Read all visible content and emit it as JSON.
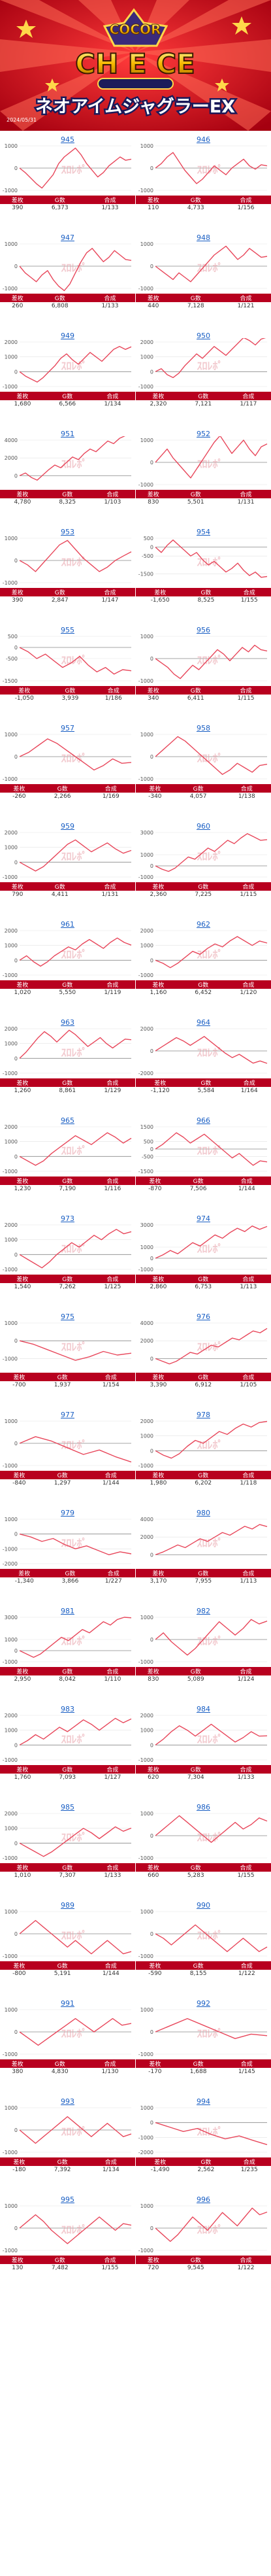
{
  "header": {
    "logo_text": "COCOR",
    "logo_sub": "CH E CE",
    "title": "ネオアイムジャグラーEX",
    "small_caption": "2024/05/31"
  },
  "labels": {
    "diff": "差枚",
    "games": "G数",
    "combined": "合成"
  },
  "watermark": "ｽﾛﾚﾎﾟ",
  "colors": {
    "accent": "#b8001f",
    "line": "#e8475b",
    "link": "#1a5fc4"
  },
  "machines": [
    {
      "num": "945",
      "diff": "390",
      "games": "6,373",
      "combined": "1/133",
      "ymax": 1000,
      "ymin": -1000,
      "pts": [
        0,
        -200,
        -450,
        -700,
        -900,
        -600,
        -300,
        200,
        500,
        700,
        900,
        600,
        200,
        -100,
        -400,
        -200,
        100,
        300,
        500,
        350,
        400
      ]
    },
    {
      "num": "946",
      "diff": "110",
      "games": "4,733",
      "combined": "1/156",
      "ymax": 1000,
      "ymin": -1000,
      "pts": [
        0,
        200,
        500,
        700,
        300,
        -100,
        -400,
        -700,
        -500,
        -200,
        100,
        -100,
        -300,
        0,
        200,
        400,
        100,
        -50,
        150,
        100
      ]
    },
    {
      "num": "947",
      "diff": "260",
      "games": "6,808",
      "combined": "1/133",
      "ymax": 1000,
      "ymin": -1000,
      "pts": [
        0,
        -300,
        -500,
        -700,
        -400,
        -200,
        -600,
        -900,
        -1100,
        -800,
        -300,
        200,
        600,
        800,
        500,
        200,
        400,
        700,
        500,
        300,
        260
      ]
    },
    {
      "num": "948",
      "diff": "440",
      "games": "7,128",
      "combined": "1/121",
      "ymax": 1000,
      "ymin": -1000,
      "pts": [
        0,
        -200,
        -400,
        -600,
        -300,
        -500,
        -700,
        -400,
        -100,
        200,
        500,
        700,
        900,
        600,
        300,
        500,
        800,
        600,
        400,
        440
      ]
    },
    {
      "num": "949",
      "diff": "1,680",
      "games": "6,566",
      "combined": "1/134",
      "ymax": 2000,
      "ymin": -1000,
      "pts": [
        0,
        -300,
        -500,
        -700,
        -400,
        0,
        400,
        900,
        1200,
        800,
        500,
        900,
        1300,
        1000,
        700,
        1100,
        1500,
        1700,
        1500,
        1680
      ]
    },
    {
      "num": "950",
      "diff": "2,320",
      "games": "7,121",
      "combined": "1/117",
      "ymax": 2000,
      "ymin": -1000,
      "pts": [
        0,
        200,
        -200,
        -400,
        -100,
        400,
        800,
        1200,
        900,
        1300,
        1700,
        1400,
        1100,
        1500,
        1900,
        2300,
        2100,
        1800,
        2200,
        2320
      ]
    },
    {
      "num": "951",
      "diff": "4,780",
      "games": "8,325",
      "combined": "1/103",
      "ymax": 4000,
      "ymin": -1000,
      "pts": [
        0,
        300,
        -200,
        -500,
        100,
        700,
        1200,
        900,
        1500,
        2100,
        1800,
        2500,
        3000,
        2700,
        3300,
        3900,
        3600,
        4200,
        4500,
        4780
      ]
    },
    {
      "num": "952",
      "diff": "830",
      "games": "5,501",
      "combined": "1/131",
      "ymax": 1000,
      "ymin": -1000,
      "pts": [
        0,
        300,
        600,
        200,
        -100,
        -400,
        -700,
        -300,
        100,
        500,
        900,
        1200,
        800,
        400,
        700,
        1000,
        600,
        300,
        700,
        830
      ]
    },
    {
      "num": "953",
      "diff": "390",
      "games": "2,847",
      "combined": "1/147",
      "ymax": 1000,
      "ymin": -1000,
      "pts": [
        0,
        -200,
        -500,
        -100,
        300,
        700,
        900,
        500,
        100,
        -200,
        -500,
        -300,
        0,
        200,
        390
      ]
    },
    {
      "num": "954",
      "diff": "-1,650",
      "games": "8,525",
      "combined": "1/155",
      "ymax": 500,
      "ymin": -2000,
      "pts": [
        0,
        -300,
        100,
        400,
        100,
        -200,
        -500,
        -300,
        -700,
        -1000,
        -800,
        -1100,
        -1400,
        -1200,
        -900,
        -1300,
        -1600,
        -1400,
        -1700,
        -1650
      ]
    },
    {
      "num": "955",
      "diff": "-1,050",
      "games": "3,939",
      "combined": "1/186",
      "ymax": 500,
      "ymin": -1500,
      "pts": [
        0,
        -200,
        -500,
        -300,
        -600,
        -900,
        -700,
        -400,
        -800,
        -1100,
        -900,
        -1200,
        -1000,
        -1050
      ]
    },
    {
      "num": "956",
      "diff": "340",
      "games": "6,411",
      "combined": "1/115",
      "ymax": 1000,
      "ymin": -1000,
      "pts": [
        0,
        -200,
        -400,
        -700,
        -900,
        -600,
        -300,
        -500,
        -200,
        100,
        400,
        200,
        -100,
        200,
        500,
        300,
        600,
        400,
        340
      ]
    },
    {
      "num": "957",
      "diff": "-260",
      "games": "2,266",
      "combined": "1/169",
      "ymax": 1000,
      "ymin": -1000,
      "pts": [
        0,
        200,
        500,
        800,
        600,
        300,
        0,
        -300,
        -600,
        -400,
        -100,
        -300,
        -260
      ]
    },
    {
      "num": "958",
      "diff": "-340",
      "games": "4,057",
      "combined": "1/138",
      "ymax": 1000,
      "ymin": -1000,
      "pts": [
        0,
        300,
        600,
        900,
        700,
        400,
        100,
        -200,
        -500,
        -800,
        -600,
        -300,
        -500,
        -700,
        -400,
        -340
      ]
    },
    {
      "num": "959",
      "diff": "790",
      "games": "4,411",
      "combined": "1/131",
      "ymax": 2000,
      "ymin": -1000,
      "pts": [
        0,
        -300,
        -600,
        -300,
        200,
        700,
        1200,
        1500,
        1100,
        700,
        1000,
        1300,
        900,
        600,
        790
      ]
    },
    {
      "num": "960",
      "diff": "2,360",
      "games": "7,225",
      "combined": "1/115",
      "ymax": 3000,
      "ymin": -1000,
      "pts": [
        0,
        -300,
        -500,
        -200,
        300,
        800,
        600,
        1100,
        1600,
        1300,
        1800,
        2300,
        2000,
        2500,
        2900,
        2600,
        2300,
        2360
      ]
    },
    {
      "num": "961",
      "diff": "1,020",
      "games": "5,550",
      "combined": "1/119",
      "ymax": 2000,
      "ymin": -1000,
      "pts": [
        0,
        300,
        -100,
        -400,
        -100,
        300,
        600,
        900,
        700,
        1100,
        1400,
        1100,
        800,
        1200,
        1500,
        1200,
        1020
      ]
    },
    {
      "num": "962",
      "diff": "1,160",
      "games": "6,452",
      "combined": "1/120",
      "ymax": 2000,
      "ymin": -1000,
      "pts": [
        0,
        -200,
        -500,
        -200,
        200,
        600,
        400,
        800,
        1100,
        900,
        1300,
        1600,
        1300,
        1000,
        1300,
        1160
      ]
    },
    {
      "num": "963",
      "diff": "1,260",
      "games": "8,861",
      "combined": "1/129",
      "ymax": 2000,
      "ymin": -1000,
      "pts": [
        0,
        400,
        900,
        1400,
        1800,
        1500,
        1100,
        1500,
        1900,
        1600,
        1200,
        800,
        1100,
        1400,
        1000,
        700,
        1000,
        1300,
        1260
      ]
    },
    {
      "num": "964",
      "diff": "-1,120",
      "games": "5,584",
      "combined": "1/164",
      "ymax": 2000,
      "ymin": -2000,
      "pts": [
        0,
        400,
        800,
        1200,
        900,
        500,
        900,
        1300,
        800,
        300,
        -200,
        -600,
        -300,
        -700,
        -1100,
        -900,
        -1120
      ]
    },
    {
      "num": "965",
      "diff": "1,230",
      "games": "7,190",
      "combined": "1/116",
      "ymax": 2000,
      "ymin": -1000,
      "pts": [
        0,
        -300,
        -600,
        -300,
        200,
        600,
        1000,
        1400,
        1100,
        800,
        1200,
        1600,
        1300,
        900,
        1230
      ]
    },
    {
      "num": "966",
      "diff": "-870",
      "games": "7,506",
      "combined": "1/144",
      "ymax": 1500,
      "ymin": -1500,
      "pts": [
        0,
        300,
        700,
        1100,
        800,
        400,
        700,
        1000,
        600,
        200,
        -200,
        -600,
        -300,
        -700,
        -1100,
        -800,
        -870
      ]
    },
    {
      "num": "973",
      "diff": "1,540",
      "games": "7,262",
      "combined": "1/125",
      "ymax": 2000,
      "ymin": -1000,
      "pts": [
        0,
        -300,
        -600,
        -900,
        -500,
        0,
        400,
        800,
        500,
        900,
        1300,
        1000,
        1400,
        1700,
        1400,
        1540
      ]
    },
    {
      "num": "974",
      "diff": "2,860",
      "games": "6,753",
      "combined": "1/113",
      "ymax": 3000,
      "ymin": -1000,
      "pts": [
        0,
        300,
        700,
        400,
        900,
        1400,
        1100,
        1600,
        2100,
        1800,
        2300,
        2700,
        2400,
        2900,
        2600,
        2860
      ]
    },
    {
      "num": "975",
      "diff": "-700",
      "games": "1,937",
      "combined": "1/154",
      "ymax": 1000,
      "ymin": -1500,
      "pts": [
        0,
        -200,
        -500,
        -800,
        -1100,
        -900,
        -600,
        -800,
        -700
      ]
    },
    {
      "num": "976",
      "diff": "3,390",
      "games": "6,912",
      "combined": "1/105",
      "ymax": 4000,
      "ymin": -1000,
      "pts": [
        0,
        -300,
        -600,
        -300,
        200,
        700,
        500,
        1000,
        1500,
        1300,
        1800,
        2300,
        2100,
        2600,
        3100,
        2900,
        3390
      ]
    },
    {
      "num": "977",
      "diff": "-840",
      "games": "1,297",
      "combined": "1/144",
      "ymax": 1000,
      "ymin": -1000,
      "pts": [
        0,
        300,
        100,
        -200,
        -500,
        -300,
        -600,
        -840
      ]
    },
    {
      "num": "978",
      "diff": "1,980",
      "games": "6,202",
      "combined": "1/118",
      "ymax": 2000,
      "ymin": -1000,
      "pts": [
        0,
        -300,
        -500,
        -200,
        300,
        700,
        500,
        900,
        1300,
        1100,
        1500,
        1800,
        1600,
        1900,
        1980
      ]
    },
    {
      "num": "979",
      "diff": "-1,340",
      "games": "3,866",
      "combined": "1/227",
      "ymax": 1000,
      "ymin": -2000,
      "pts": [
        0,
        -200,
        -500,
        -300,
        -700,
        -1000,
        -800,
        -1100,
        -1400,
        -1200,
        -1340
      ]
    },
    {
      "num": "980",
      "diff": "3,170",
      "games": "7,955",
      "combined": "1/113",
      "ymax": 4000,
      "ymin": -1000,
      "pts": [
        0,
        300,
        700,
        1100,
        800,
        1300,
        1800,
        1500,
        2000,
        2500,
        2200,
        2700,
        3200,
        2900,
        3400,
        3170
      ]
    },
    {
      "num": "981",
      "diff": "2,950",
      "games": "8,042",
      "combined": "1/110",
      "ymax": 3000,
      "ymin": -1000,
      "pts": [
        0,
        -300,
        -600,
        -300,
        200,
        700,
        1200,
        900,
        1400,
        1900,
        1600,
        2100,
        2600,
        2300,
        2800,
        3000,
        2950
      ]
    },
    {
      "num": "982",
      "diff": "830",
      "games": "5,089",
      "combined": "1/124",
      "ymax": 1000,
      "ymin": -1000,
      "pts": [
        0,
        300,
        -100,
        -400,
        -700,
        -400,
        0,
        400,
        800,
        500,
        200,
        500,
        900,
        700,
        830
      ]
    },
    {
      "num": "983",
      "diff": "1,760",
      "games": "7,093",
      "combined": "1/127",
      "ymax": 2000,
      "ymin": -1000,
      "pts": [
        0,
        300,
        700,
        400,
        800,
        1200,
        900,
        1300,
        1700,
        1400,
        1000,
        1400,
        1800,
        1500,
        1760
      ]
    },
    {
      "num": "984",
      "diff": "620",
      "games": "7,304",
      "combined": "1/133",
      "ymax": 2000,
      "ymin": -1000,
      "pts": [
        0,
        400,
        900,
        1300,
        1000,
        600,
        1000,
        1400,
        1000,
        600,
        200,
        500,
        900,
        600,
        620
      ]
    },
    {
      "num": "985",
      "diff": "1,010",
      "games": "7,307",
      "combined": "1/133",
      "ymax": 2000,
      "ymin": -1000,
      "pts": [
        0,
        -300,
        -600,
        -900,
        -600,
        -200,
        200,
        600,
        1000,
        700,
        300,
        700,
        1100,
        800,
        1010
      ]
    },
    {
      "num": "986",
      "diff": "660",
      "games": "5,283",
      "combined": "1/155",
      "ymax": 1000,
      "ymin": -1000,
      "pts": [
        0,
        300,
        600,
        900,
        600,
        300,
        0,
        -300,
        0,
        300,
        600,
        300,
        500,
        800,
        660
      ]
    },
    {
      "num": "989",
      "diff": "-800",
      "games": "5,191",
      "combined": "1/144",
      "ymax": 1000,
      "ymin": -1000,
      "pts": [
        0,
        300,
        600,
        300,
        0,
        -300,
        -600,
        -300,
        -600,
        -900,
        -600,
        -300,
        -600,
        -900,
        -800
      ]
    },
    {
      "num": "990",
      "diff": "-590",
      "games": "8,155",
      "combined": "1/122",
      "ymax": 1000,
      "ymin": -1000,
      "pts": [
        0,
        -200,
        -500,
        -200,
        100,
        400,
        100,
        -200,
        -500,
        -800,
        -500,
        -200,
        -500,
        -800,
        -590
      ]
    },
    {
      "num": "991",
      "diff": "380",
      "games": "4,830",
      "combined": "1/130",
      "ymax": 1000,
      "ymin": -1000,
      "pts": [
        0,
        -300,
        -600,
        -300,
        0,
        300,
        600,
        300,
        0,
        300,
        600,
        300,
        380
      ]
    },
    {
      "num": "992",
      "diff": "-170",
      "games": "1,688",
      "combined": "1/145",
      "ymax": 1000,
      "ymin": -1000,
      "pts": [
        0,
        300,
        600,
        300,
        0,
        -300,
        -100,
        -170
      ]
    },
    {
      "num": "993",
      "diff": "-180",
      "games": "7,392",
      "combined": "1/134",
      "ymax": 1000,
      "ymin": -1000,
      "pts": [
        0,
        -300,
        -600,
        -300,
        0,
        300,
        600,
        300,
        0,
        -300,
        0,
        300,
        0,
        -300,
        -180
      ]
    },
    {
      "num": "994",
      "diff": "-1,490",
      "games": "2,562",
      "combined": "1/235",
      "ymax": 1000,
      "ymin": -2000,
      "pts": [
        0,
        -300,
        -600,
        -400,
        -800,
        -1100,
        -900,
        -1200,
        -1490
      ]
    },
    {
      "num": "995",
      "diff": "130",
      "games": "7,482",
      "combined": "1/155",
      "ymax": 1000,
      "ymin": -1000,
      "pts": [
        0,
        300,
        600,
        300,
        -100,
        -400,
        -700,
        -400,
        -100,
        200,
        500,
        200,
        -100,
        200,
        130
      ]
    },
    {
      "num": "996",
      "diff": "720",
      "games": "9,545",
      "combined": "1/122",
      "ymax": 1000,
      "ymin": -1000,
      "pts": [
        0,
        -300,
        -600,
        -300,
        100,
        500,
        200,
        -100,
        300,
        700,
        400,
        100,
        500,
        900,
        600,
        720
      ]
    }
  ]
}
